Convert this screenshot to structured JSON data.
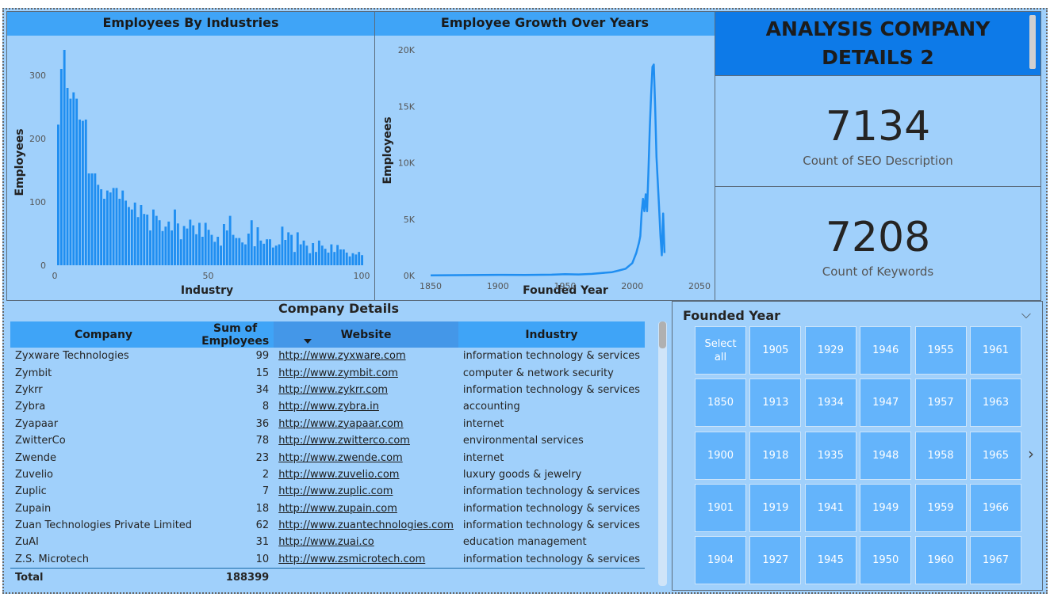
{
  "bar_chart": {
    "title": "Employees By Industries",
    "xlabel": "Industry",
    "ylabel": "Employees",
    "x_ticks": [
      "0",
      "50",
      "100"
    ],
    "y_ticks": [
      "0",
      "100",
      "200",
      "300"
    ],
    "bar_color": "#1f8ef1"
  },
  "line_chart": {
    "title": "Employee Growth Over Years",
    "xlabel": "Founded Year",
    "ylabel": "Employees",
    "x_ticks": [
      "1850",
      "1900",
      "1950",
      "2000",
      "2050"
    ],
    "y_ticks": [
      "0K",
      "5K",
      "10K",
      "15K",
      "20K"
    ],
    "line_color": "#1f8ef1"
  },
  "chart_data": [
    {
      "type": "bar",
      "title": "Employees By Industries",
      "xlabel": "Industry",
      "ylabel": "Employees",
      "xlim": [
        0,
        100
      ],
      "ylim": [
        0,
        350
      ],
      "x": [
        1,
        2,
        3,
        4,
        5,
        6,
        7,
        8,
        9,
        10,
        11,
        12,
        13,
        14,
        15,
        16,
        17,
        18,
        19,
        20,
        21,
        22,
        23,
        24,
        25,
        26,
        27,
        28,
        29,
        30,
        31,
        32,
        33,
        34,
        35,
        36,
        37,
        38,
        39,
        40,
        41,
        42,
        43,
        44,
        45,
        46,
        47,
        48,
        49,
        50,
        51,
        52,
        53,
        54,
        55,
        56,
        57,
        58,
        59,
        60,
        61,
        62,
        63,
        64,
        65,
        66,
        67,
        68,
        69,
        70,
        71,
        72,
        73,
        74,
        75,
        76,
        77,
        78,
        79,
        80,
        81,
        82,
        83,
        84,
        85,
        86,
        87,
        88,
        89,
        90,
        91,
        92,
        93,
        94,
        95,
        96,
        97,
        98,
        99,
        100
      ],
      "values": [
        222,
        310,
        340,
        280,
        263,
        273,
        263,
        230,
        228,
        230,
        145,
        145,
        145,
        127,
        120,
        105,
        118,
        115,
        122,
        122,
        105,
        118,
        102,
        92,
        88,
        99,
        76,
        95,
        81,
        80,
        55,
        88,
        78,
        71,
        54,
        61,
        69,
        55,
        88,
        66,
        41,
        62,
        58,
        72,
        63,
        49,
        67,
        45,
        67,
        56,
        48,
        37,
        45,
        31,
        65,
        55,
        78,
        48,
        43,
        43,
        36,
        33,
        50,
        71,
        30,
        60,
        39,
        34,
        41,
        41,
        28,
        31,
        33,
        61,
        40,
        52,
        48,
        21,
        52,
        33,
        39,
        31,
        19,
        35,
        21,
        39,
        31,
        26,
        20,
        33,
        21,
        32,
        25,
        25,
        20,
        14,
        19,
        17,
        21,
        16
      ],
      "grid": false
    },
    {
      "type": "line",
      "title": "Employee Growth Over Years",
      "xlabel": "Founded Year",
      "ylabel": "Employees",
      "xlim": [
        1850,
        2050
      ],
      "ylim": [
        0,
        20000
      ],
      "x": [
        1850,
        1880,
        1900,
        1920,
        1940,
        1950,
        1960,
        1970,
        1980,
        1985,
        1990,
        1995,
        2000,
        2003,
        2005,
        2006,
        2007,
        2008,
        2009,
        2010,
        2011,
        2012,
        2013,
        2014,
        2015,
        2016,
        2017,
        2018,
        2019,
        2020,
        2021,
        2022,
        2023,
        2024
      ],
      "values": [
        20,
        40,
        60,
        50,
        80,
        120,
        100,
        150,
        250,
        300,
        450,
        600,
        1100,
        2000,
        2900,
        3500,
        5600,
        6800,
        5700,
        7200,
        5700,
        9100,
        13000,
        16000,
        18500,
        18700,
        15000,
        10500,
        8200,
        6000,
        3500,
        1800,
        5500,
        2000
      ],
      "grid": false
    }
  ],
  "title_card": {
    "text": "ANALYSIS COMPANY DETAILS 2"
  },
  "kpis": [
    {
      "value": "7134",
      "label": "Count of SEO Description"
    },
    {
      "value": "7208",
      "label": "Count of Keywords"
    }
  ],
  "table": {
    "title": "Company Details",
    "columns": [
      "Company",
      "Sum of Employees",
      "Website",
      "Industry"
    ],
    "rows": [
      {
        "company": "Zyxware Technologies",
        "employees": "99",
        "website": "http://www.zyxware.com",
        "industry": "information technology & services"
      },
      {
        "company": "Zymbit",
        "employees": "15",
        "website": "http://www.zymbit.com",
        "industry": "computer & network security"
      },
      {
        "company": "Zykrr",
        "employees": "34",
        "website": "http://www.zykrr.com",
        "industry": "information technology & services"
      },
      {
        "company": "Zybra",
        "employees": "8",
        "website": "http://www.zybra.in",
        "industry": "accounting"
      },
      {
        "company": "Zyapaar",
        "employees": "36",
        "website": "http://www.zyapaar.com",
        "industry": "internet"
      },
      {
        "company": "ZwitterCo",
        "employees": "78",
        "website": "http://www.zwitterco.com",
        "industry": "environmental services"
      },
      {
        "company": "Zwende",
        "employees": "23",
        "website": "http://www.zwende.com",
        "industry": "internet"
      },
      {
        "company": "Zuvelio",
        "employees": "2",
        "website": "http://www.zuvelio.com",
        "industry": "luxury goods & jewelry"
      },
      {
        "company": "Zuplic",
        "employees": "7",
        "website": "http://www.zuplic.com",
        "industry": "information technology & services"
      },
      {
        "company": "Zupain",
        "employees": "18",
        "website": "http://www.zupain.com",
        "industry": "information technology & services"
      },
      {
        "company": "Zuan Technologies Private Limited",
        "employees": "62",
        "website": "http://www.zuantechnologies.com",
        "industry": "information technology & services"
      },
      {
        "company": "ZuAI",
        "employees": "31",
        "website": "http://www.zuai.co",
        "industry": "education management"
      },
      {
        "company": "Z.S. Microtech",
        "employees": "10",
        "website": "http://www.zsmicrotech.com",
        "industry": "information technology & services"
      }
    ],
    "total_label": "Total",
    "total_value": "188399"
  },
  "slicer": {
    "title": "Founded Year",
    "tiles": [
      [
        "Select all",
        "1905",
        "1929",
        "1946",
        "1955",
        "1961"
      ],
      [
        "1850",
        "1913",
        "1934",
        "1947",
        "1957",
        "1963"
      ],
      [
        "1900",
        "1918",
        "1935",
        "1948",
        "1958",
        "1965"
      ],
      [
        "1901",
        "1919",
        "1941",
        "1949",
        "1959",
        "1966"
      ],
      [
        "1904",
        "1927",
        "1945",
        "1950",
        "1960",
        "1967"
      ]
    ],
    "chevron_icon": "chevron-down-icon",
    "next_icon": "chevron-right-icon"
  }
}
